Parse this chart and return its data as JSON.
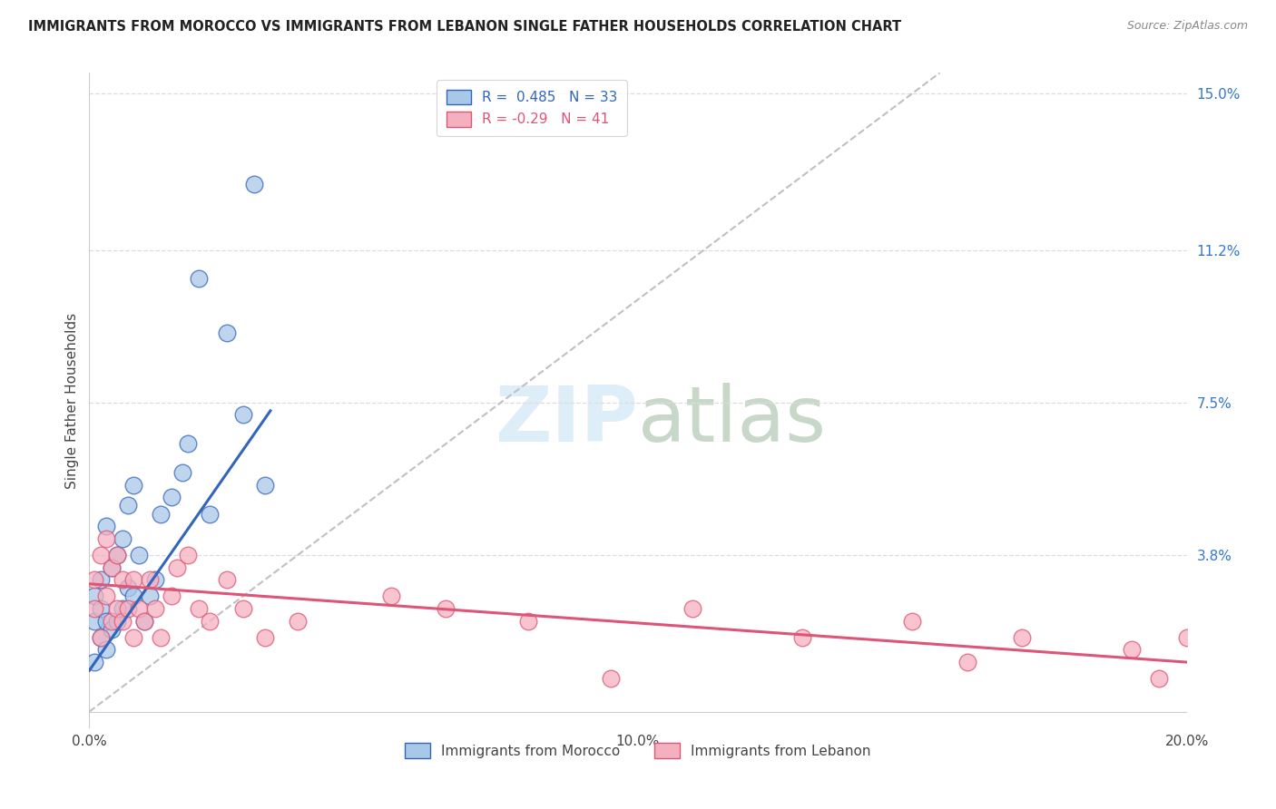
{
  "title": "IMMIGRANTS FROM MOROCCO VS IMMIGRANTS FROM LEBANON SINGLE FATHER HOUSEHOLDS CORRELATION CHART",
  "source": "Source: ZipAtlas.com",
  "xlabel_morocco": "Immigrants from Morocco",
  "xlabel_lebanon": "Immigrants from Lebanon",
  "ylabel": "Single Father Households",
  "r_morocco": 0.485,
  "n_morocco": 33,
  "r_lebanon": -0.29,
  "n_lebanon": 41,
  "xlim": [
    0.0,
    0.2
  ],
  "ylim": [
    -0.004,
    0.155
  ],
  "yticks": [
    0.0,
    0.038,
    0.075,
    0.112,
    0.15
  ],
  "ytick_labels": [
    "",
    "3.8%",
    "7.5%",
    "11.2%",
    "15.0%"
  ],
  "xticks": [
    0.0,
    0.05,
    0.1,
    0.15,
    0.2
  ],
  "xtick_labels": [
    "0.0%",
    "",
    "10.0%",
    "",
    "20.0%"
  ],
  "color_morocco": "#a8c8e8",
  "color_lebanon": "#f5b0c0",
  "color_morocco_line": "#3366bb",
  "color_lebanon_line": "#dd5577",
  "color_ref_line": "#c0c0c0",
  "watermark_color": "#ddeef8",
  "morocco_x": [
    0.001,
    0.001,
    0.001,
    0.002,
    0.002,
    0.002,
    0.003,
    0.003,
    0.003,
    0.004,
    0.004,
    0.005,
    0.005,
    0.006,
    0.006,
    0.007,
    0.007,
    0.008,
    0.008,
    0.009,
    0.01,
    0.011,
    0.012,
    0.013,
    0.015,
    0.017,
    0.018,
    0.022,
    0.025,
    0.028,
    0.032,
    0.02,
    0.03
  ],
  "morocco_y": [
    0.012,
    0.022,
    0.028,
    0.018,
    0.025,
    0.032,
    0.015,
    0.022,
    0.045,
    0.02,
    0.035,
    0.022,
    0.038,
    0.025,
    0.042,
    0.03,
    0.05,
    0.028,
    0.055,
    0.038,
    0.022,
    0.028,
    0.032,
    0.048,
    0.052,
    0.058,
    0.065,
    0.048,
    0.092,
    0.072,
    0.055,
    0.105,
    0.128
  ],
  "lebanon_x": [
    0.001,
    0.001,
    0.002,
    0.002,
    0.003,
    0.003,
    0.004,
    0.004,
    0.005,
    0.005,
    0.006,
    0.006,
    0.007,
    0.008,
    0.008,
    0.009,
    0.01,
    0.011,
    0.012,
    0.013,
    0.015,
    0.016,
    0.018,
    0.02,
    0.022,
    0.025,
    0.028,
    0.032,
    0.038,
    0.055,
    0.065,
    0.08,
    0.095,
    0.11,
    0.13,
    0.15,
    0.16,
    0.17,
    0.19,
    0.195,
    0.2
  ],
  "lebanon_y": [
    0.025,
    0.032,
    0.018,
    0.038,
    0.028,
    0.042,
    0.022,
    0.035,
    0.025,
    0.038,
    0.022,
    0.032,
    0.025,
    0.018,
    0.032,
    0.025,
    0.022,
    0.032,
    0.025,
    0.018,
    0.028,
    0.035,
    0.038,
    0.025,
    0.022,
    0.032,
    0.025,
    0.018,
    0.022,
    0.028,
    0.025,
    0.022,
    0.008,
    0.025,
    0.018,
    0.022,
    0.012,
    0.018,
    0.015,
    0.008,
    0.018
  ],
  "morocco_trend_x": [
    0.0,
    0.033
  ],
  "morocco_trend_y": [
    0.01,
    0.073
  ],
  "lebanon_trend_x": [
    0.0,
    0.2
  ],
  "lebanon_trend_y": [
    0.031,
    0.012
  ]
}
